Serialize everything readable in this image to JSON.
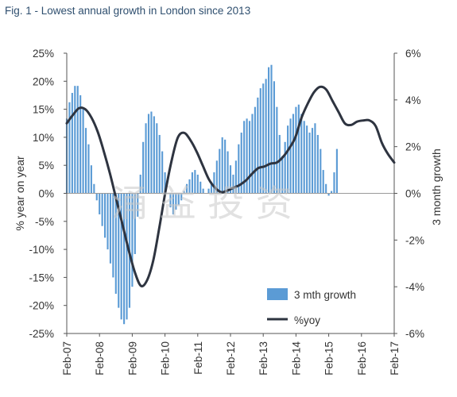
{
  "chart_data": {
    "type": "bar+line",
    "title": "Fig. 1 - Lowest annual growth in London since 2013",
    "watermark": "涌 益 投 资",
    "left_axis": {
      "label": "% year on year",
      "min": -25,
      "max": 25,
      "ticks": [
        "25%",
        "20%",
        "15%",
        "10%",
        "5%",
        "0%",
        "-5%",
        "-10%",
        "-15%",
        "-20%",
        "-25%"
      ]
    },
    "right_axis": {
      "label": "3 month growth",
      "min": -6,
      "max": 6,
      "ticks": [
        "6%",
        "4%",
        "2%",
        "0%",
        "-2%",
        "-4%",
        "-6%"
      ]
    },
    "x_ticks": [
      "Feb-07",
      "Feb-08",
      "Feb-09",
      "Feb-10",
      "Feb-11",
      "Feb-12",
      "Feb-13",
      "Feb-14",
      "Feb-15",
      "Feb-16",
      "Feb-17"
    ],
    "x_start": "2007-02",
    "legend": {
      "position": "bottom-right",
      "bar_label": "3 mth growth",
      "line_label": "%yoy"
    },
    "colors": {
      "bar": "#5b9bd5",
      "line": "#2e3440",
      "axis": "#555555"
    },
    "series": [
      {
        "name": "3 mth growth",
        "axis": "right",
        "style": "bar",
        "values": [
          3.2,
          3.9,
          4.3,
          4.6,
          4.6,
          4.2,
          3.6,
          2.8,
          2.1,
          1.2,
          0.4,
          -0.3,
          -0.9,
          -1.4,
          -1.9,
          -2.4,
          -3.0,
          -3.6,
          -4.3,
          -4.9,
          -5.4,
          -5.6,
          -5.4,
          -4.9,
          -4.0,
          -2.6,
          -1.0,
          0.8,
          2.2,
          3.0,
          3.4,
          3.5,
          3.3,
          3.0,
          2.5,
          1.8,
          0.9,
          0.0,
          -0.6,
          -0.9,
          -0.7,
          -0.5,
          -0.3,
          0.1,
          0.4,
          0.6,
          0.9,
          1.0,
          0.8,
          0.5,
          0.2,
          0.0,
          0.2,
          0.5,
          0.9,
          1.4,
          1.9,
          2.4,
          2.3,
          1.8,
          1.2,
          0.8,
          1.4,
          2.1,
          2.6,
          3.1,
          3.2,
          3.1,
          3.4,
          3.7,
          4.1,
          4.5,
          4.7,
          4.9,
          5.4,
          5.5,
          4.8,
          3.7,
          2.5,
          1.6,
          2.2,
          2.9,
          3.2,
          3.4,
          3.7,
          3.8,
          3.4,
          3.1,
          2.9,
          2.6,
          2.8,
          3.0,
          2.5,
          1.9,
          1.0,
          0.4,
          -0.1,
          0.1,
          0.9,
          1.9
        ]
      },
      {
        "name": "%yoy",
        "axis": "left",
        "style": "line",
        "values": [
          12.5,
          14.0,
          15.2,
          15.0,
          13.5,
          11.0,
          7.5,
          3.5,
          -1.0,
          -5.5,
          -10.0,
          -14.0,
          -16.5,
          -15.5,
          -12.0,
          -6.0,
          0.5,
          6.0,
          10.0,
          10.8,
          9.5,
          7.5,
          5.0,
          2.5,
          1.0,
          0.2,
          0.5,
          1.0,
          1.5,
          2.3,
          3.5,
          4.5,
          4.8,
          5.3,
          5.5,
          6.5,
          8.0,
          10.0,
          13.5,
          16.0,
          18.0,
          19.0,
          18.5,
          16.5,
          14.5,
          12.5,
          12.2,
          12.8,
          13.0,
          13.0,
          12.0,
          9.0,
          7.0,
          5.5
        ]
      }
    ]
  }
}
